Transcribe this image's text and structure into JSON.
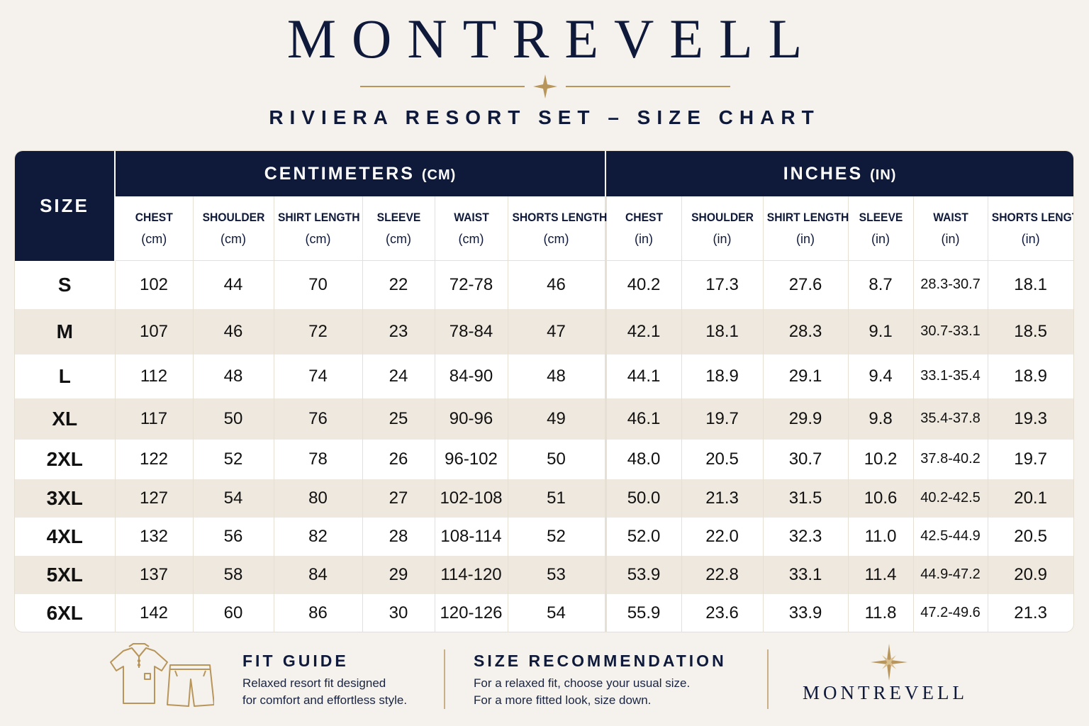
{
  "brand": "MONTREVELL",
  "subtitle": "RIVIERA  RESORT SET – SIZE CHART",
  "size_label": "SIZE",
  "cm_group": {
    "label": "CENTIMETERS",
    "unit": "(CM)"
  },
  "in_group": {
    "label": "INCHES",
    "unit": "(IN)"
  },
  "cm_headers": [
    {
      "name": "CHEST",
      "unit": "(cm)"
    },
    {
      "name": "SHOULDER",
      "unit": "(cm)"
    },
    {
      "name": "SHIRT LENGTH",
      "unit": "(cm)"
    },
    {
      "name": "SLEEVE",
      "unit": "(cm)"
    },
    {
      "name": "WAIST",
      "unit": "(cm)"
    },
    {
      "name": "SHORTS LENGTH",
      "unit": "(cm)"
    }
  ],
  "in_headers": [
    {
      "name": "CHEST",
      "unit": "(in)"
    },
    {
      "name": "SHOULDER",
      "unit": "(in)"
    },
    {
      "name": "SHIRT LENGTH",
      "unit": "(in)"
    },
    {
      "name": "SLEEVE",
      "unit": "(in)"
    },
    {
      "name": "WAIST",
      "unit": "(in)"
    },
    {
      "name": "SHORTS LENGTH",
      "unit": "(in)"
    }
  ],
  "rows": [
    {
      "size": "S",
      "cm": [
        "102",
        "44",
        "70",
        "22",
        "72-78",
        "46"
      ],
      "in": [
        "40.2",
        "17.3",
        "27.6",
        "8.7",
        "28.3-30.7",
        "18.1"
      ]
    },
    {
      "size": "M",
      "cm": [
        "107",
        "46",
        "72",
        "23",
        "78-84",
        "47"
      ],
      "in": [
        "42.1",
        "18.1",
        "28.3",
        "9.1",
        "30.7-33.1",
        "18.5"
      ]
    },
    {
      "size": "L",
      "cm": [
        "112",
        "48",
        "74",
        "24",
        "84-90",
        "48"
      ],
      "in": [
        "44.1",
        "18.9",
        "29.1",
        "9.4",
        "33.1-35.4",
        "18.9"
      ]
    },
    {
      "size": "XL",
      "cm": [
        "117",
        "50",
        "76",
        "25",
        "90-96",
        "49"
      ],
      "in": [
        "46.1",
        "19.7",
        "29.9",
        "9.8",
        "35.4-37.8",
        "19.3"
      ]
    },
    {
      "size": "2XL",
      "cm": [
        "122",
        "52",
        "78",
        "26",
        "96-102",
        "50"
      ],
      "in": [
        "48.0",
        "20.5",
        "30.7",
        "10.2",
        "37.8-40.2",
        "19.7"
      ]
    },
    {
      "size": "3XL",
      "cm": [
        "127",
        "54",
        "80",
        "27",
        "102-108",
        "51"
      ],
      "in": [
        "50.0",
        "21.3",
        "31.5",
        "10.6",
        "40.2-42.5",
        "20.1"
      ]
    },
    {
      "size": "4XL",
      "cm": [
        "132",
        "56",
        "82",
        "28",
        "108-114",
        "52"
      ],
      "in": [
        "52.0",
        "22.0",
        "32.3",
        "11.0",
        "42.5-44.9",
        "20.5"
      ]
    },
    {
      "size": "5XL",
      "cm": [
        "137",
        "58",
        "84",
        "29",
        "114-120",
        "53"
      ],
      "in": [
        "53.9",
        "22.8",
        "33.1",
        "11.4",
        "44.9-47.2",
        "20.9"
      ]
    },
    {
      "size": "6XL",
      "cm": [
        "142",
        "60",
        "86",
        "30",
        "120-126",
        "54"
      ],
      "in": [
        "55.9",
        "23.6",
        "33.9",
        "11.8",
        "47.2-49.6",
        "21.3"
      ]
    }
  ],
  "fit_guide": {
    "title": "FIT GUIDE",
    "line1": "Relaxed resort fit designed",
    "line2": "for comfort and effortless style."
  },
  "size_recommendation": {
    "title": "SIZE RECOMMENDATION",
    "line1": "For a relaxed fit, choose your usual size.",
    "line2": "For a more fitted look, size down."
  },
  "footer_brand": "MONTREVELL",
  "icons": [
    "sparkle-star-icon",
    "shirt-icon",
    "shorts-icon",
    "compass-star-icon"
  ],
  "colors": {
    "navy": "#0f1a3a",
    "gold": "#b8955a",
    "stripe": "#efe8de",
    "background": "#f5f2ed"
  }
}
